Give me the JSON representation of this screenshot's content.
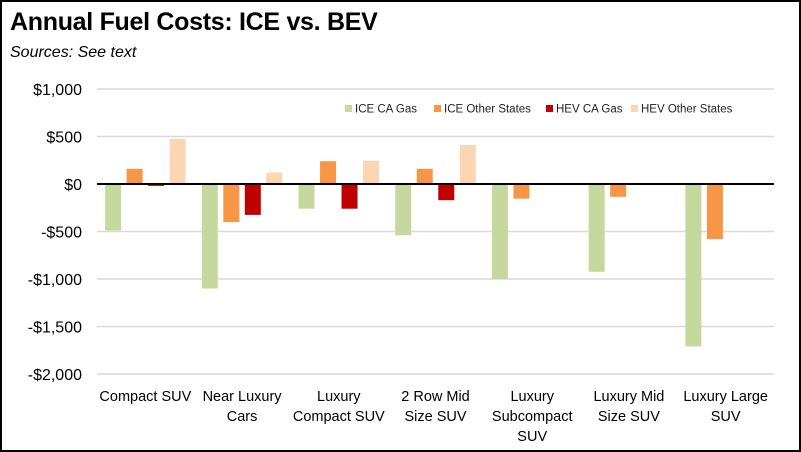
{
  "chart_data": {
    "type": "bar",
    "title": "Annual Fuel Costs:  ICE vs. BEV",
    "subtitle": "Sources:  See text",
    "xlabel": "",
    "ylabel": "",
    "ylim": [
      -2000,
      1000
    ],
    "yticks": [
      1000,
      500,
      0,
      -500,
      -1000,
      -1500,
      -2000
    ],
    "ytick_labels": [
      "$1,000",
      "$500",
      "$0",
      "-$500",
      "-$1,000",
      "-$1,500",
      "-$2,000"
    ],
    "grid": true,
    "legend_position": "top-right",
    "categories": [
      [
        "Compact SUV"
      ],
      [
        "Near Luxury",
        "Cars"
      ],
      [
        "Luxury",
        "Compact SUV"
      ],
      [
        "2 Row Mid",
        "Size SUV"
      ],
      [
        "Luxury",
        "Subcompact",
        "SUV"
      ],
      [
        "Luxury Mid",
        "Size SUV"
      ],
      [
        "Luxury Large",
        "SUV"
      ]
    ],
    "series": [
      {
        "name": "ICE CA Gas",
        "color": "#C5D99F",
        "values": [
          -490,
          -1100,
          -260,
          -540,
          -1000,
          -925,
          -1710
        ]
      },
      {
        "name": "ICE Other States",
        "color": "#F79646",
        "values": [
          160,
          -400,
          240,
          160,
          -155,
          -135,
          -580
        ]
      },
      {
        "name": "HEV CA Gas",
        "color": "#C00000",
        "values": [
          -20,
          -325,
          -260,
          -170,
          null,
          null,
          null
        ]
      },
      {
        "name": "HEV Other States",
        "color": "#FCD5B5",
        "values": [
          475,
          120,
          245,
          410,
          null,
          null,
          null
        ]
      }
    ]
  }
}
